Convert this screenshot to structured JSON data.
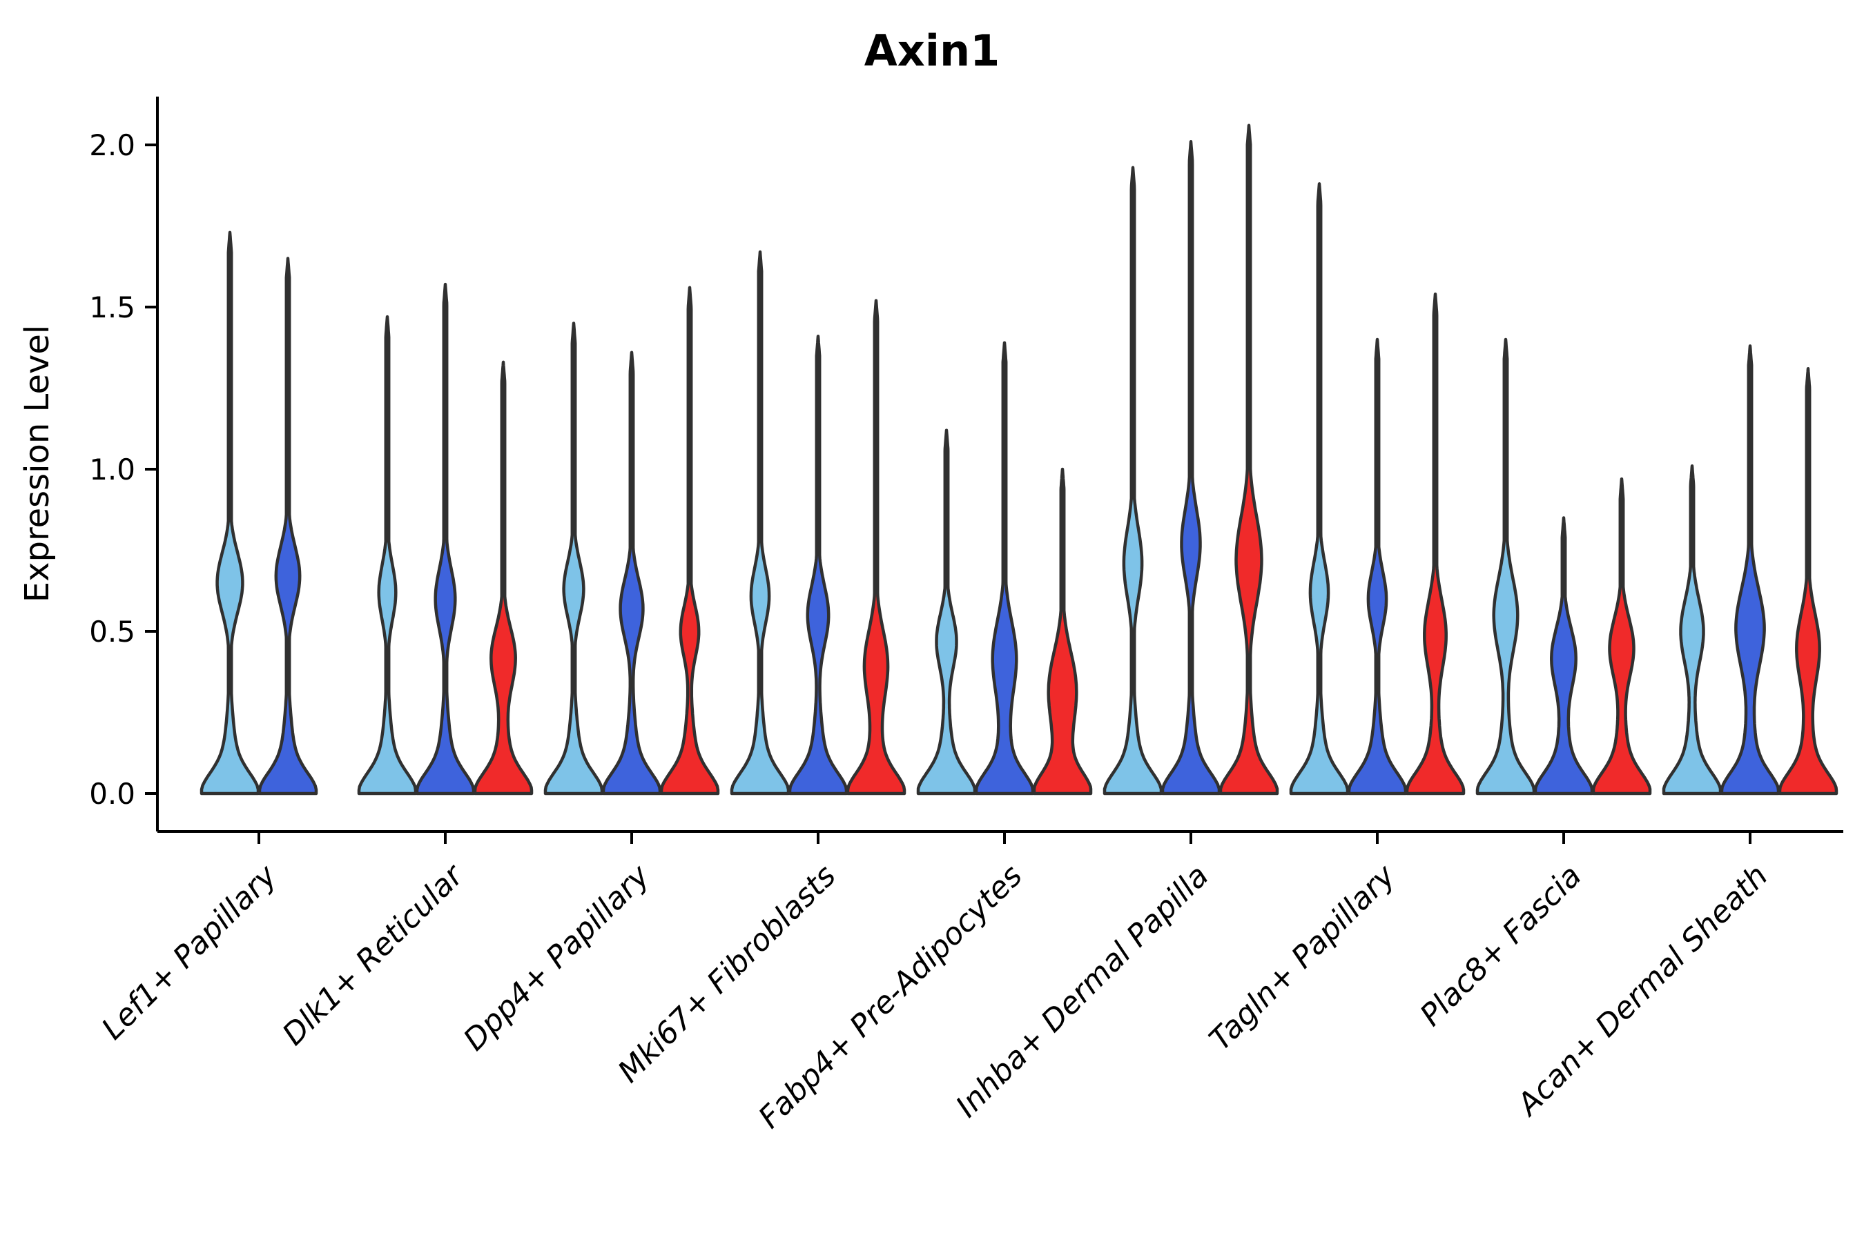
{
  "chart_data": {
    "type": "violin",
    "title": "Axin1",
    "xlabel": "",
    "ylabel": "Expression Level",
    "ylim": [
      0,
      2.15
    ],
    "ytick_values": [
      0.0,
      0.5,
      1.0,
      1.5,
      2.0
    ],
    "ytick_labels": [
      "0.0",
      "0.5",
      "1.0",
      "1.5",
      "2.0"
    ],
    "grid": false,
    "legend": "none",
    "categories": [
      "Lef1+ Papillary",
      "Dlk1+ Reticular",
      "Dpp4+ Papillary",
      "Mki67+ Fibroblasts",
      "Fabp4+ Pre-Adipocytes",
      "Inhba+ Dermal Papilla",
      "Tagln+ Papillary",
      "Plac8+ Fascia",
      "Acan+ Dermal Sheath"
    ],
    "hue_colors": {
      "light_blue": "#7EC3E8",
      "dark_blue": "#3E63DC",
      "red": "#F02A2A"
    },
    "groups": [
      {
        "category": "Lef1+ Papillary",
        "violins": [
          {
            "hue": "light_blue",
            "max": 1.73,
            "mode": 0.65,
            "mode_sigma": 0.13,
            "mode_amp": 0.45
          },
          {
            "hue": "dark_blue",
            "max": 1.65,
            "mode": 0.67,
            "mode_sigma": 0.13,
            "mode_amp": 0.42
          }
        ]
      },
      {
        "category": "Dlk1+ Reticular",
        "violins": [
          {
            "hue": "light_blue",
            "max": 1.47,
            "mode": 0.62,
            "mode_sigma": 0.12,
            "mode_amp": 0.3
          },
          {
            "hue": "dark_blue",
            "max": 1.57,
            "mode": 0.6,
            "mode_sigma": 0.13,
            "mode_amp": 0.35
          },
          {
            "hue": "red",
            "max": 1.33,
            "mode": 0.42,
            "mode_sigma": 0.13,
            "mode_amp": 0.42
          }
        ]
      },
      {
        "category": "Dpp4+ Papillary",
        "violins": [
          {
            "hue": "light_blue",
            "max": 1.45,
            "mode": 0.63,
            "mode_sigma": 0.12,
            "mode_amp": 0.35
          },
          {
            "hue": "dark_blue",
            "max": 1.36,
            "mode": 0.57,
            "mode_sigma": 0.13,
            "mode_amp": 0.4
          },
          {
            "hue": "red",
            "max": 1.56,
            "mode": 0.5,
            "mode_sigma": 0.11,
            "mode_amp": 0.32
          }
        ]
      },
      {
        "category": "Mki67+ Fibroblasts",
        "violins": [
          {
            "hue": "light_blue",
            "max": 1.67,
            "mode": 0.61,
            "mode_sigma": 0.12,
            "mode_amp": 0.32
          },
          {
            "hue": "dark_blue",
            "max": 1.41,
            "mode": 0.55,
            "mode_sigma": 0.13,
            "mode_amp": 0.37
          },
          {
            "hue": "red",
            "max": 1.52,
            "mode": 0.4,
            "mode_sigma": 0.15,
            "mode_amp": 0.4
          }
        ]
      },
      {
        "category": "Fabp4+ Pre-Adipocytes",
        "violins": [
          {
            "hue": "light_blue",
            "max": 1.12,
            "mode": 0.47,
            "mode_sigma": 0.12,
            "mode_amp": 0.35
          },
          {
            "hue": "dark_blue",
            "max": 1.39,
            "mode": 0.42,
            "mode_sigma": 0.16,
            "mode_amp": 0.41
          },
          {
            "hue": "red",
            "max": 1.0,
            "mode": 0.33,
            "mode_sigma": 0.16,
            "mode_amp": 0.45
          }
        ]
      },
      {
        "category": "Inhba+ Dermal Papilla",
        "violins": [
          {
            "hue": "light_blue",
            "max": 1.93,
            "mode": 0.71,
            "mode_sigma": 0.15,
            "mode_amp": 0.32
          },
          {
            "hue": "dark_blue",
            "max": 2.01,
            "mode": 0.77,
            "mode_sigma": 0.15,
            "mode_amp": 0.33
          },
          {
            "hue": "red",
            "max": 2.06,
            "mode": 0.72,
            "mode_sigma": 0.19,
            "mode_amp": 0.45
          }
        ]
      },
      {
        "category": "Tagln+ Papillary",
        "violins": [
          {
            "hue": "light_blue",
            "max": 1.88,
            "mode": 0.62,
            "mode_sigma": 0.13,
            "mode_amp": 0.32
          },
          {
            "hue": "dark_blue",
            "max": 1.4,
            "mode": 0.6,
            "mode_sigma": 0.12,
            "mode_amp": 0.32
          },
          {
            "hue": "red",
            "max": 1.54,
            "mode": 0.49,
            "mode_sigma": 0.15,
            "mode_amp": 0.38
          }
        ]
      },
      {
        "category": "Plac8+ Fascia",
        "violins": [
          {
            "hue": "light_blue",
            "max": 1.4,
            "mode": 0.55,
            "mode_sigma": 0.16,
            "mode_amp": 0.42
          },
          {
            "hue": "dark_blue",
            "max": 0.85,
            "mode": 0.42,
            "mode_sigma": 0.13,
            "mode_amp": 0.42
          },
          {
            "hue": "red",
            "max": 0.97,
            "mode": 0.45,
            "mode_sigma": 0.13,
            "mode_amp": 0.42
          }
        ]
      },
      {
        "category": "Acan+ Dermal Sheath",
        "violins": [
          {
            "hue": "light_blue",
            "max": 1.01,
            "mode": 0.5,
            "mode_sigma": 0.14,
            "mode_amp": 0.4
          },
          {
            "hue": "dark_blue",
            "max": 1.38,
            "mode": 0.51,
            "mode_sigma": 0.17,
            "mode_amp": 0.5
          },
          {
            "hue": "red",
            "max": 1.31,
            "mode": 0.45,
            "mode_sigma": 0.15,
            "mode_amp": 0.4
          }
        ]
      }
    ]
  }
}
